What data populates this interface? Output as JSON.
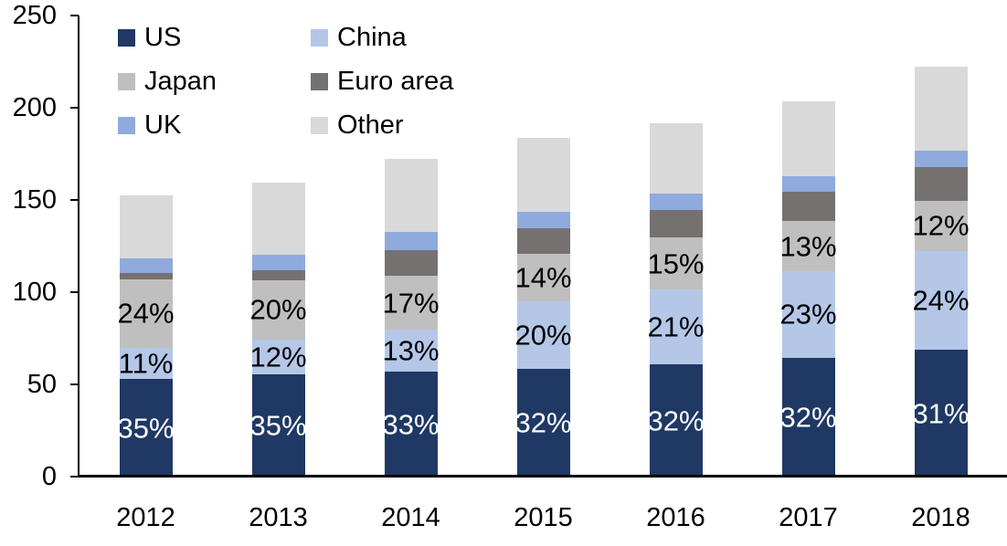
{
  "chart_data": {
    "type": "bar",
    "stacked": true,
    "title": "",
    "xlabel": "",
    "ylabel": "",
    "categories": [
      "2012",
      "2013",
      "2014",
      "2015",
      "2016",
      "2017",
      "2018"
    ],
    "series": [
      {
        "name": "US",
        "color": "#1F3864",
        "values": [
          53.5,
          56,
          57.5,
          59,
          61.5,
          65,
          69.5
        ],
        "labels": [
          "35%",
          "35%",
          "33%",
          "32%",
          "32%",
          "32%",
          "31%"
        ],
        "label_color": "#FFFFFF"
      },
      {
        "name": "China",
        "color": "#B4C7E7",
        "values": [
          17,
          19,
          22.5,
          36.5,
          40.5,
          47,
          53.5
        ],
        "labels": [
          "11%",
          "12%",
          "13%",
          "20%",
          "21%",
          "23%",
          "24%"
        ],
        "label_color": "#000000"
      },
      {
        "name": "Japan",
        "color": "#BFBFBF",
        "values": [
          37,
          32,
          29.5,
          26,
          28,
          27,
          27
        ],
        "labels": [
          "24%",
          "20%",
          "17%",
          "14%",
          "15%",
          "13%",
          "12%"
        ],
        "label_color": "#000000"
      },
      {
        "name": "Euro area",
        "color": "#767171",
        "values": [
          3.5,
          5.5,
          14,
          13.5,
          15,
          16,
          18.5
        ],
        "labels": null,
        "label_color": null
      },
      {
        "name": "UK",
        "color": "#8FAADC",
        "values": [
          8,
          8.5,
          9.5,
          9,
          9,
          8.5,
          9
        ],
        "labels": null,
        "label_color": null
      },
      {
        "name": "Other",
        "color": "#D9D9D9",
        "values": [
          34,
          39,
          40,
          40,
          38,
          40.5,
          45.5
        ],
        "labels": null,
        "label_color": null
      }
    ],
    "totals": [
      153,
      160,
      173,
      184,
      192,
      204,
      223
    ],
    "ylim": [
      0,
      250
    ],
    "yticks": [
      0,
      50,
      100,
      150,
      200,
      250
    ],
    "grid": false,
    "legend_position": "top-left",
    "legend_columns": 2,
    "axis_color": "#000000"
  }
}
